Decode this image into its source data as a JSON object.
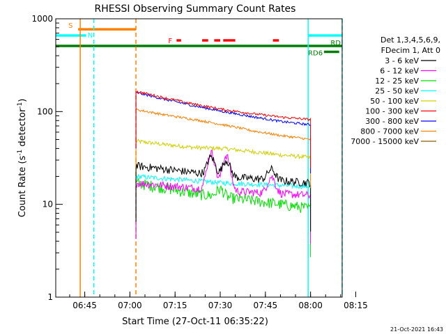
{
  "chart_data": {
    "type": "line",
    "title": "RHESSI Observing Summary Count Rates",
    "xlabel": "Start Time (27-Oct-11 06:35:22)",
    "ylabel_main": "Count Rate (s",
    "ylabel_sup": "-1",
    "ylabel_mid": " detector",
    "ylabel_sup2": "-1",
    "ylabel_end": ")",
    "y_scale": "log",
    "ylim": [
      1,
      1000
    ],
    "xlim_minutes": [
      35.37,
      130.5
    ],
    "x_ticks": [
      {
        "label": "06:45",
        "minute": 45
      },
      {
        "label": "07:00",
        "minute": 60
      },
      {
        "label": "07:15",
        "minute": 75
      },
      {
        "label": "07:30",
        "minute": 90
      },
      {
        "label": "07:45",
        "minute": 105
      },
      {
        "label": "08:00",
        "minute": 120
      },
      {
        "label": "08:15",
        "minute": 135
      }
    ],
    "y_ticks": [
      {
        "label": "1",
        "value": 1
      },
      {
        "label": "10",
        "value": 10
      },
      {
        "label": "100",
        "value": 100
      },
      {
        "label": "1000",
        "value": 1000
      }
    ],
    "legend": {
      "header1": "Det 1,3,4,5,6,9,",
      "header2": "FDecim 1, Att 0",
      "placement": "right"
    },
    "series": [
      {
        "name": "3 - 6 keV",
        "color": "#000000",
        "base": [
          26,
          24,
          22,
          20,
          19,
          18,
          17
        ],
        "noise": 0.1,
        "peaks": [
          [
            87,
            1.55
          ],
          [
            92,
            1.5
          ],
          [
            107,
            1.3
          ]
        ]
      },
      {
        "name": "6 - 12 keV",
        "color": "#ff00ff",
        "base": [
          17,
          16,
          15,
          14,
          13.5,
          13,
          12.5
        ],
        "noise": 0.1,
        "peaks": [
          [
            87,
            2.5
          ],
          [
            92,
            2.4
          ],
          [
            107,
            1.5
          ]
        ]
      },
      {
        "name": "12 - 25 keV",
        "color": "#00e000",
        "base": [
          17,
          15,
          13,
          12,
          11,
          10,
          9
        ],
        "noise": 0.14,
        "peaks": [
          [
            90,
            1.2
          ]
        ]
      },
      {
        "name": "25 - 50 keV",
        "color": "#00ffff",
        "base": [
          20,
          19,
          18,
          17,
          16.5,
          16,
          15.5
        ],
        "noise": 0.06,
        "peaks": []
      },
      {
        "name": "50 - 100 keV",
        "color": "#d0d000",
        "base": [
          48,
          44,
          41,
          40,
          37,
          34,
          32
        ],
        "noise": 0.05,
        "peaks": []
      },
      {
        "name": "100 - 300 keV",
        "color": "#ff0000",
        "base": [
          165,
          140,
          120,
          105,
          95,
          87,
          82
        ],
        "noise": 0.03,
        "peaks": []
      },
      {
        "name": "300 - 800 keV",
        "color": "#0000ff",
        "base": [
          160,
          135,
          115,
          100,
          88,
          78,
          72
        ],
        "noise": 0.03,
        "peaks": []
      },
      {
        "name": "800 - 7000 keV",
        "color": "#ff8000",
        "base": [
          105,
          92,
          82,
          72,
          62,
          55,
          50
        ],
        "noise": 0.03,
        "peaks": []
      },
      {
        "name": "7000 - 15000 keV",
        "color": "#8b5a00",
        "base": [],
        "noise": 0,
        "peaks": []
      }
    ],
    "series_minute_range": [
      62,
      120
    ],
    "flags": [
      {
        "label": "S",
        "color": "#ff8000",
        "segments": [
          [
            42.8,
            62.0
          ]
        ],
        "level": 770
      },
      {
        "label": "N",
        "color": "#00ffff",
        "segments": [
          [
            35.37,
            45.5
          ],
          [
            119.2,
            130.5
          ]
        ],
        "level": 660
      },
      {
        "label": "F",
        "color": "#ff0000",
        "segments": [
          [
            75.5,
            77
          ],
          [
            84,
            86
          ],
          [
            88,
            90
          ],
          [
            91,
            95
          ],
          [
            107.5,
            109.5
          ]
        ],
        "level": 585
      },
      {
        "label": "RD",
        "color": "#007f00",
        "segments": [
          [
            35.37,
            130.5
          ]
        ],
        "level": 510
      },
      {
        "label": "RD6",
        "color": "#007f00",
        "segments": [
          [
            124.5,
            129.5
          ]
        ],
        "level": 440
      }
    ],
    "vlines": [
      {
        "minute": 43.5,
        "color": "#ff8000",
        "dash": false
      },
      {
        "minute": 48.0,
        "color": "#00ffff",
        "dash": true
      },
      {
        "minute": 62.0,
        "color": "#ff8000",
        "dash": true
      },
      {
        "minute": 119.2,
        "color": "#00ffff",
        "dash": false
      },
      {
        "minute": 130.5,
        "color": "#00ffff",
        "dash": true
      }
    ]
  },
  "footer": "21-Oct-2021 16:43"
}
